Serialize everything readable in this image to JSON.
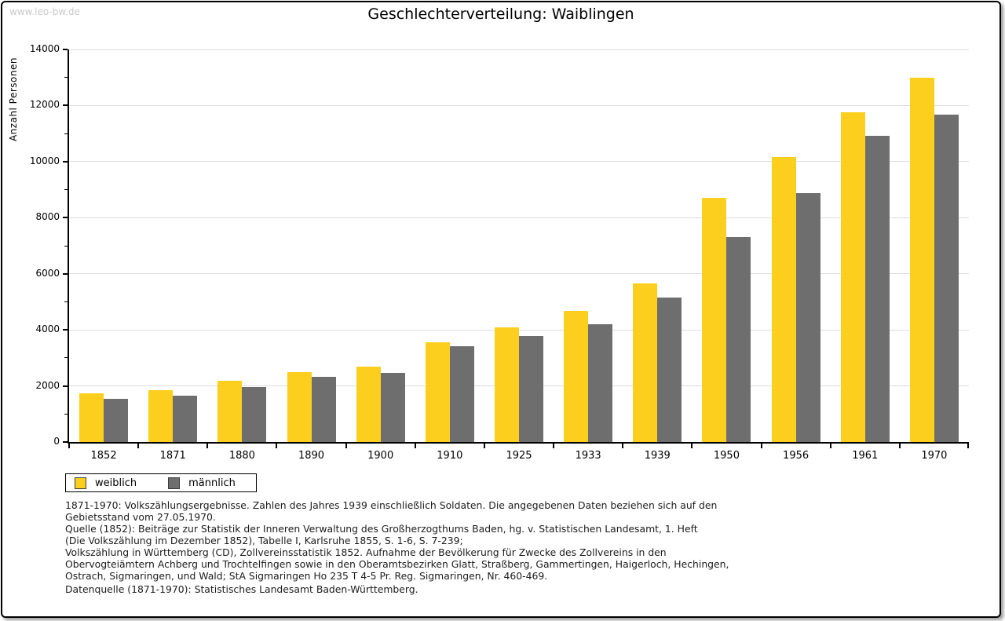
{
  "watermark": "www.leo-bw.de",
  "title": "Geschlechterverteilung: Waiblingen",
  "chart_data": {
    "type": "bar",
    "title": "Geschlechterverteilung: Waiblingen",
    "xlabel": "",
    "ylabel": "Anzahl Personen",
    "ylim": [
      0,
      14000
    ],
    "ytick_step": 2000,
    "ytick_minor_step": 1000,
    "grid": true,
    "legend_position": "bottom-left",
    "categories": [
      "1852",
      "1871",
      "1880",
      "1890",
      "1900",
      "1910",
      "1925",
      "1933",
      "1939",
      "1950",
      "1956",
      "1961",
      "1970"
    ],
    "series": [
      {
        "name": "weiblich",
        "color": "#fccf1e",
        "values": [
          1750,
          1860,
          2190,
          2480,
          2700,
          3560,
          4080,
          4670,
          5650,
          8700,
          10170,
          11760,
          13000
        ]
      },
      {
        "name": "männlich",
        "color": "#6e6e6e",
        "values": [
          1550,
          1650,
          1960,
          2320,
          2460,
          3420,
          3770,
          4210,
          5150,
          7300,
          8880,
          10920,
          11670
        ]
      }
    ]
  },
  "footnotes": [
    "1871-1970: Volkszählungsergebnisse. Zahlen des Jahres 1939 einschließlich Soldaten. Die angegebenen Daten beziehen sich auf den",
    "Gebietsstand vom 27.05.1970.",
    "Quelle (1852): Beiträge zur Statistik der Inneren Verwaltung des Großherzogthums Baden, hg. v. Statistischen Landesamt, 1. Heft",
    "(Die Volkszählung im Dezember 1852), Tabelle I, Karlsruhe 1855, S. 1-6, S. 7-239;",
    "Volkszählung in Württemberg (CD), Zollvereinsstatistik 1852. Aufnahme der Bevölkerung für Zwecke des Zollvereins in den",
    "Obervogteiämtern Achberg und Trochtelfingen sowie in den Oberamtsbezirken Glatt, Straßberg, Gammertingen, Haigerloch, Hechingen,",
    "Ostrach, Sigmaringen, und Wald; StA Sigmaringen Ho 235 T 4-5 Pr. Reg. Sigmaringen, Nr. 460-469."
  ],
  "datasource": "Datenquelle (1871-1970): Statistisches Landesamt Baden-Württemberg."
}
